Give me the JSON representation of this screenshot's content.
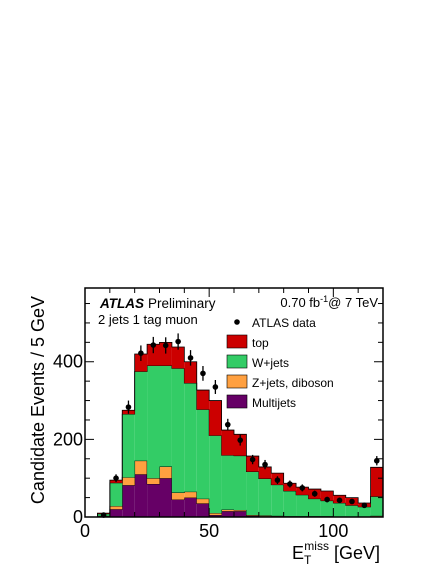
{
  "chart_data": {
    "type": "bar",
    "stacked": true,
    "ylabel": "Candidate Events / 5 GeV",
    "xlabel_main": "E",
    "xlabel_sub": "T",
    "xlabel_sup": "miss",
    "xlabel_unit": "[GeV]",
    "xlim": [
      0,
      120
    ],
    "ylim": [
      0,
      590
    ],
    "xticks": [
      0,
      50,
      100
    ],
    "yticks": [
      0,
      200,
      400
    ],
    "bin_edges": [
      0,
      5,
      10,
      15,
      20,
      25,
      30,
      35,
      40,
      45,
      50,
      55,
      60,
      65,
      70,
      75,
      80,
      85,
      90,
      95,
      100,
      105,
      110,
      115,
      120
    ],
    "series": [
      {
        "name": "Multijets",
        "color": "#660066",
        "values": [
          0,
          2,
          20,
          82,
          110,
          85,
          100,
          45,
          50,
          35,
          5,
          15,
          15,
          3,
          2,
          2,
          1,
          1,
          1,
          1,
          0,
          0,
          0,
          0
        ]
      },
      {
        "name": "Z+jets, diboson",
        "color": "#ffa040",
        "values": [
          0,
          1,
          8,
          20,
          35,
          15,
          30,
          18,
          15,
          12,
          5,
          4,
          3,
          2,
          2,
          1,
          1,
          1,
          1,
          1,
          1,
          0,
          1,
          3
        ]
      },
      {
        "name": "W+jets",
        "color": "#33cc66",
        "values": [
          0,
          5,
          60,
          163,
          230,
          290,
          260,
          320,
          280,
          230,
          200,
          140,
          140,
          112,
          95,
          80,
          65,
          55,
          45,
          40,
          35,
          30,
          25,
          50
        ]
      },
      {
        "name": "top",
        "color": "#cc0000",
        "values": [
          0,
          2,
          7,
          10,
          45,
          55,
          60,
          55,
          55,
          50,
          90,
          65,
          55,
          40,
          30,
          30,
          20,
          20,
          25,
          25,
          20,
          20,
          10,
          75
        ]
      }
    ],
    "data": {
      "name": "ATLAS data",
      "x": [
        7.5,
        12.5,
        17.5,
        22.5,
        27.5,
        32.5,
        37.5,
        42.5,
        47.5,
        52.5,
        57.5,
        62.5,
        67.5,
        72.5,
        77.5,
        82.5,
        87.5,
        92.5,
        97.5,
        102.5,
        107.5,
        112.5,
        117.5
      ],
      "y": [
        5,
        100,
        283,
        422,
        443,
        442,
        452,
        410,
        370,
        335,
        238,
        198,
        148,
        135,
        95,
        85,
        75,
        60,
        45,
        43,
        40,
        30,
        145
      ],
      "err": [
        3,
        10,
        17,
        20,
        21,
        21,
        21,
        20,
        19,
        18,
        15,
        14,
        12,
        12,
        10,
        9,
        9,
        8,
        7,
        7,
        6,
        6,
        12
      ]
    },
    "annotations": {
      "atlas": "ATLAS",
      "preliminary": "Preliminary",
      "selection": "2 jets 1 tag muon",
      "lumi_value": "0.70 fb",
      "lumi_exp": "-1",
      "lumi_energy": "@ 7 TeV"
    },
    "legend": {
      "placement": "top-right",
      "entries": [
        "ATLAS data",
        "top",
        "W+jets",
        "Z+jets, diboson",
        "Multijets"
      ]
    }
  }
}
